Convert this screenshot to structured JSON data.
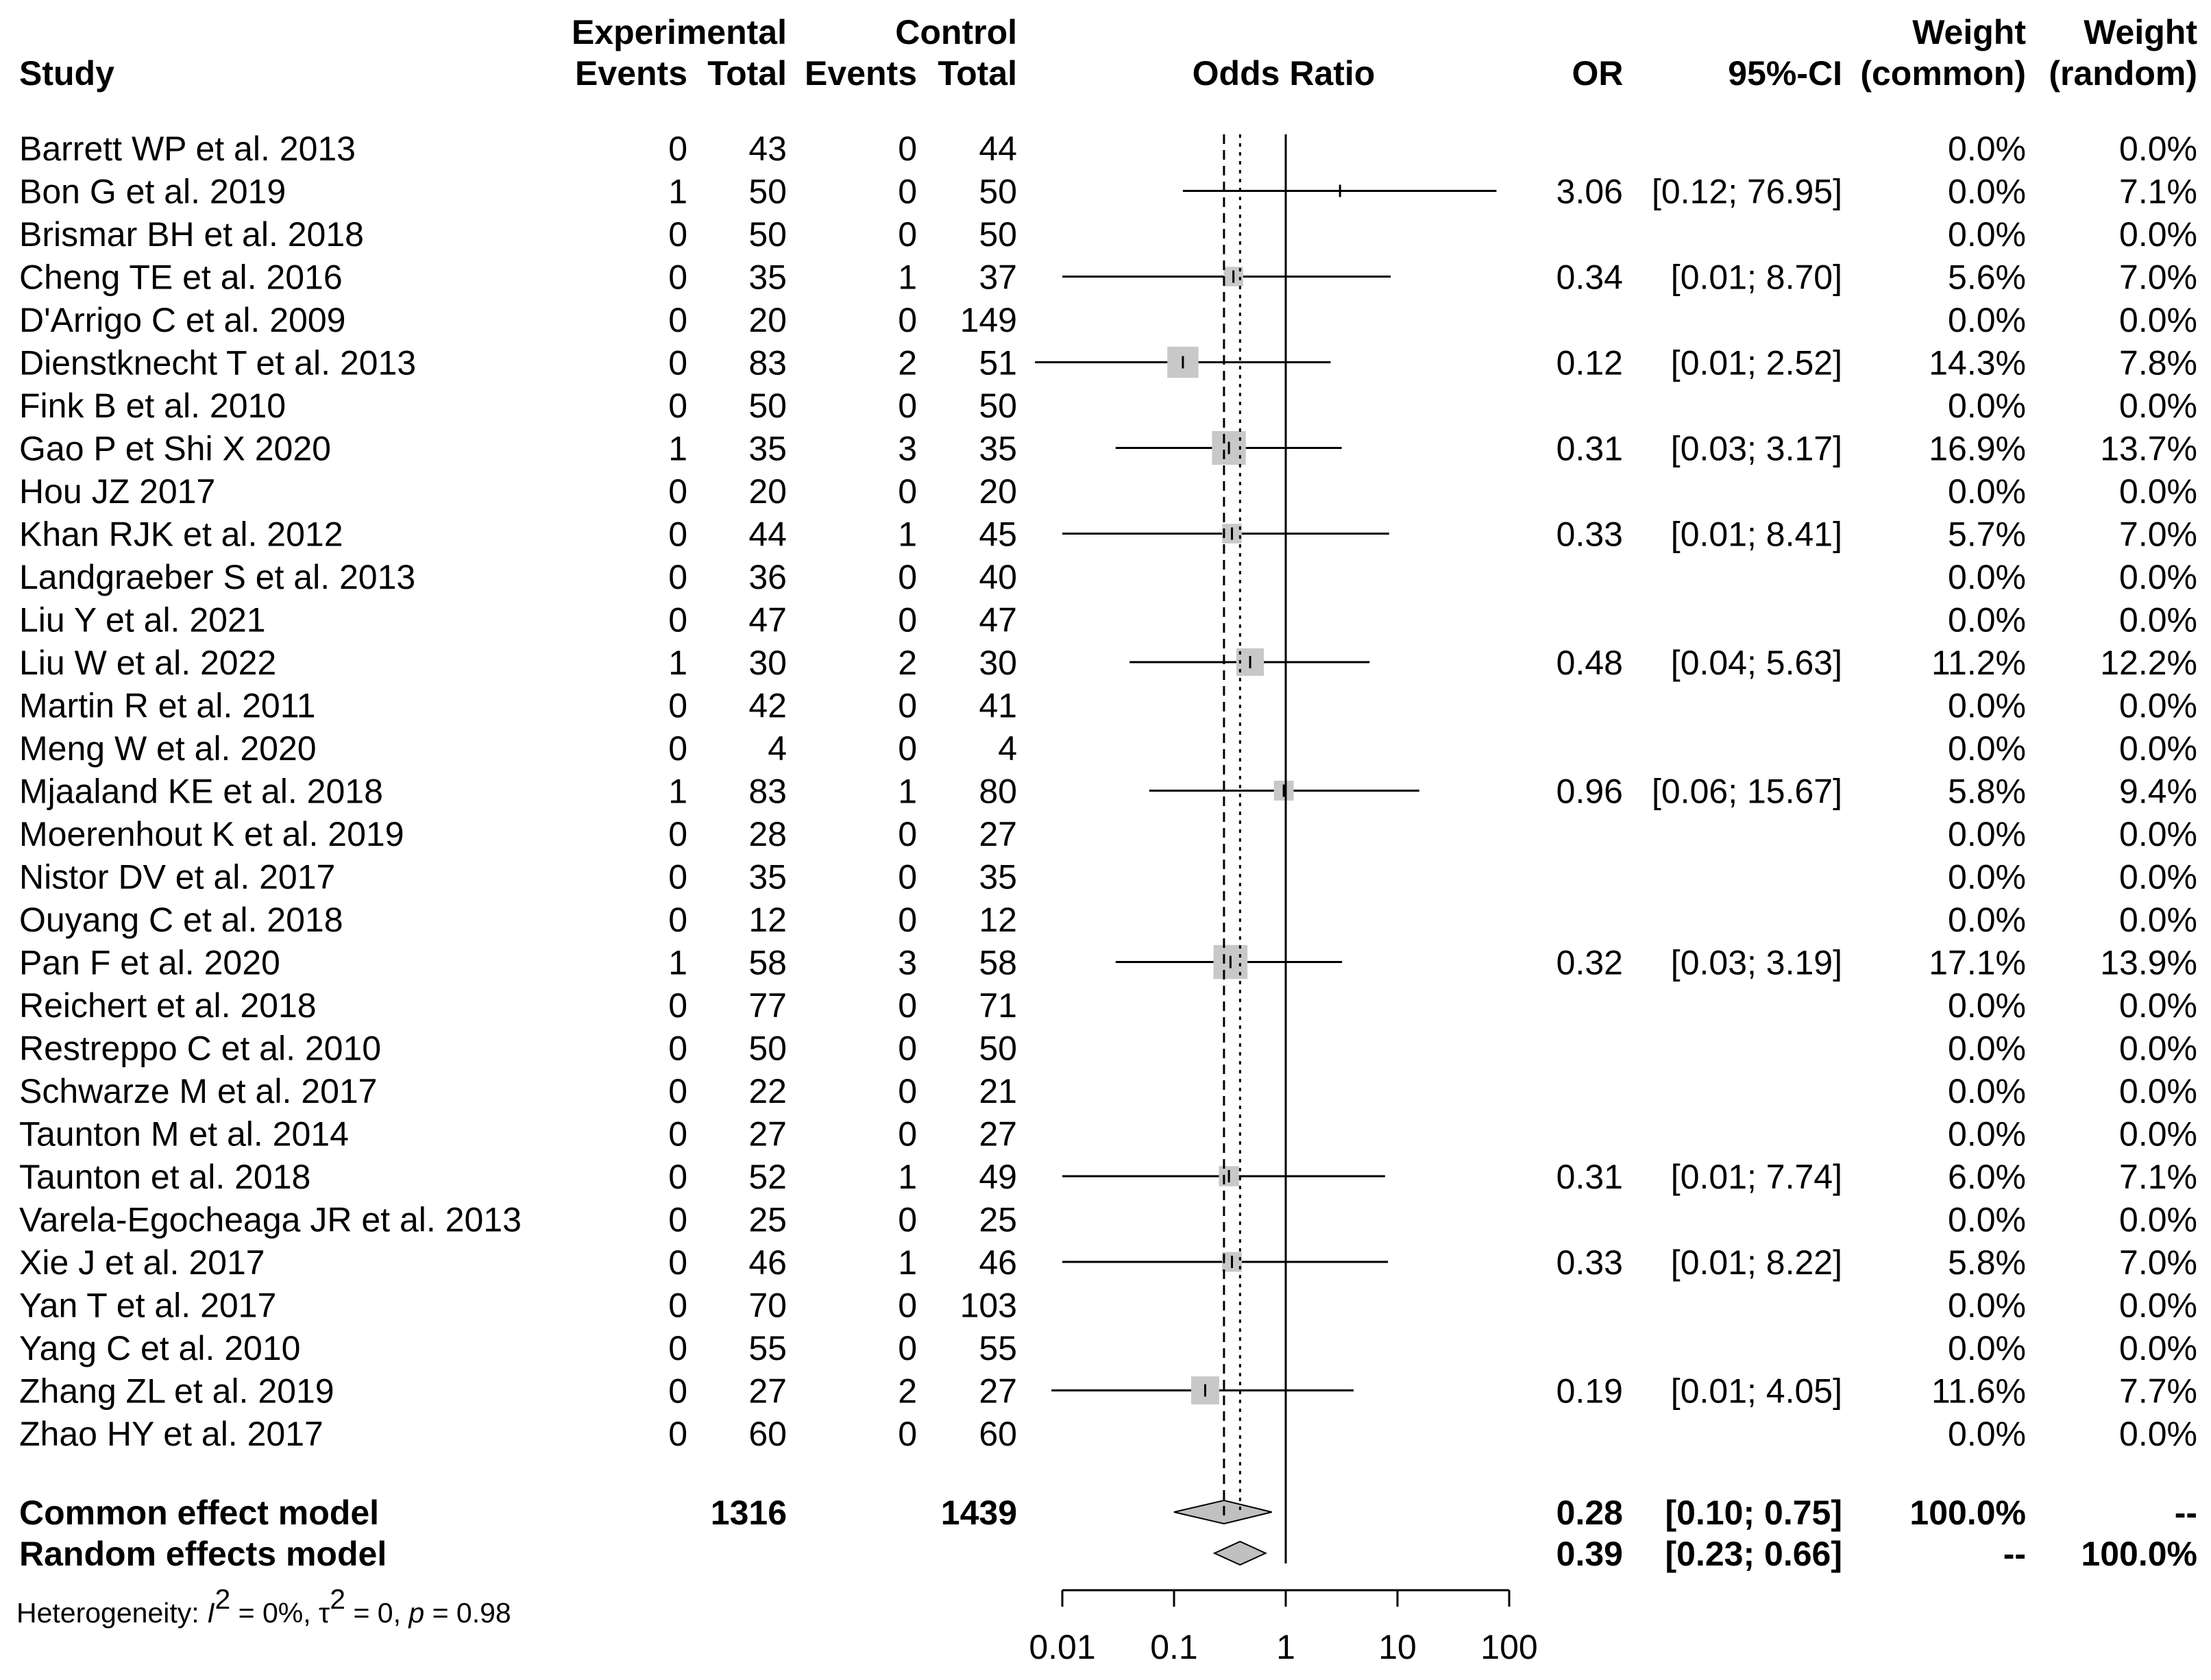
{
  "chart_data": {
    "type": "forest",
    "title": "Odds Ratio",
    "headers": {
      "study": "Study",
      "experimental": "Experimental",
      "control": "Control",
      "events": "Events",
      "total": "Total",
      "odds_ratio": "Odds Ratio",
      "or": "OR",
      "ci": "95%-CI",
      "weight": "Weight",
      "weight_common": "(common)",
      "weight_random": "(random)"
    },
    "x_scale": "log",
    "xlim": [
      0.01,
      100
    ],
    "ticks": [
      {
        "value": 0.01,
        "label": "0.01"
      },
      {
        "value": 0.1,
        "label": "0.1"
      },
      {
        "value": 1,
        "label": "1"
      },
      {
        "value": 10,
        "label": "10"
      },
      {
        "value": 100,
        "label": "100"
      }
    ],
    "reference_line": 1,
    "studies": [
      {
        "study": "Barrett WP et al. 2013",
        "e_events": "0",
        "e_total": "43",
        "c_events": "0",
        "c_total": "44",
        "or_text": "",
        "ci_text": "",
        "w_common": "0.0%",
        "w_random": "0.0%"
      },
      {
        "study": "Bon G et al. 2019",
        "e_events": "1",
        "e_total": "50",
        "c_events": "0",
        "c_total": "50",
        "or_text": "3.06",
        "ci_text": "[0.12; 76.95]",
        "w_common": "0.0%",
        "w_random": "7.1%",
        "or": 3.06,
        "lower": 0.12,
        "upper": 76.95,
        "weight": 0.0
      },
      {
        "study": "Brismar BH et al. 2018",
        "e_events": "0",
        "e_total": "50",
        "c_events": "0",
        "c_total": "50",
        "or_text": "",
        "ci_text": "",
        "w_common": "0.0%",
        "w_random": "0.0%"
      },
      {
        "study": "Cheng TE et al. 2016",
        "e_events": "0",
        "e_total": "35",
        "c_events": "1",
        "c_total": "37",
        "or_text": "0.34",
        "ci_text": "[0.01;  8.70]",
        "w_common": "5.6%",
        "w_random": "7.0%",
        "or": 0.34,
        "lower": 0.01,
        "upper": 8.7,
        "weight": 5.6
      },
      {
        "study": "D'Arrigo C et al. 2009",
        "e_events": "0",
        "e_total": "20",
        "c_events": "0",
        "c_total": "149",
        "or_text": "",
        "ci_text": "",
        "w_common": "0.0%",
        "w_random": "0.0%"
      },
      {
        "study": "Dienstknecht T et al. 2013",
        "e_events": "0",
        "e_total": "83",
        "c_events": "2",
        "c_total": "51",
        "or_text": "0.12",
        "ci_text": "[0.01;  2.52]",
        "w_common": "14.3%",
        "w_random": "7.8%",
        "or": 0.12,
        "lower": 0.0057,
        "upper": 2.52,
        "weight": 14.3
      },
      {
        "study": "Fink B et al.  2010",
        "e_events": "0",
        "e_total": "50",
        "c_events": "0",
        "c_total": "50",
        "or_text": "",
        "ci_text": "",
        "w_common": "0.0%",
        "w_random": "0.0%"
      },
      {
        "study": "Gao P et Shi X 2020",
        "e_events": "1",
        "e_total": "35",
        "c_events": "3",
        "c_total": "35",
        "or_text": "0.31",
        "ci_text": "[0.03;  3.17]",
        "w_common": "16.9%",
        "w_random": "13.7%",
        "or": 0.31,
        "lower": 0.03,
        "upper": 3.17,
        "weight": 16.9
      },
      {
        "study": "Hou JZ 2017",
        "e_events": "0",
        "e_total": "20",
        "c_events": "0",
        "c_total": "20",
        "or_text": "",
        "ci_text": "",
        "w_common": "0.0%",
        "w_random": "0.0%"
      },
      {
        "study": "Khan RJK et al. 2012",
        "e_events": "0",
        "e_total": "44",
        "c_events": "1",
        "c_total": "45",
        "or_text": "0.33",
        "ci_text": "[0.01;  8.41]",
        "w_common": "5.7%",
        "w_random": "7.0%",
        "or": 0.33,
        "lower": 0.01,
        "upper": 8.41,
        "weight": 5.7
      },
      {
        "study": "Landgraeber S et al.  2013",
        "e_events": "0",
        "e_total": "36",
        "c_events": "0",
        "c_total": "40",
        "or_text": "",
        "ci_text": "",
        "w_common": "0.0%",
        "w_random": "0.0%"
      },
      {
        "study": "Liu Y et al. 2021",
        "e_events": "0",
        "e_total": "47",
        "c_events": "0",
        "c_total": "47",
        "or_text": "",
        "ci_text": "",
        "w_common": "0.0%",
        "w_random": "0.0%"
      },
      {
        "study": "Liu W et al. 2022",
        "e_events": "1",
        "e_total": "30",
        "c_events": "2",
        "c_total": "30",
        "or_text": "0.48",
        "ci_text": "[0.04;  5.63]",
        "w_common": "11.2%",
        "w_random": "12.2%",
        "or": 0.48,
        "lower": 0.04,
        "upper": 5.63,
        "weight": 11.2
      },
      {
        "study": "Martin R et al. 2011",
        "e_events": "0",
        "e_total": "42",
        "c_events": "0",
        "c_total": "41",
        "or_text": "",
        "ci_text": "",
        "w_common": "0.0%",
        "w_random": "0.0%"
      },
      {
        "study": "Meng W et al. 2020",
        "e_events": "0",
        "e_total": "4",
        "c_events": "0",
        "c_total": "4",
        "or_text": "",
        "ci_text": "",
        "w_common": "0.0%",
        "w_random": "0.0%"
      },
      {
        "study": "Mjaaland KE et al. 2018",
        "e_events": "1",
        "e_total": "83",
        "c_events": "1",
        "c_total": "80",
        "or_text": "0.96",
        "ci_text": "[0.06; 15.67]",
        "w_common": "5.8%",
        "w_random": "9.4%",
        "or": 0.96,
        "lower": 0.06,
        "upper": 15.67,
        "weight": 5.8
      },
      {
        "study": "Moerenhout K et al.  2019",
        "e_events": "0",
        "e_total": "28",
        "c_events": "0",
        "c_total": "27",
        "or_text": "",
        "ci_text": "",
        "w_common": "0.0%",
        "w_random": "0.0%"
      },
      {
        "study": "Nistor DV et al. 2017",
        "e_events": "0",
        "e_total": "35",
        "c_events": "0",
        "c_total": "35",
        "or_text": "",
        "ci_text": "",
        "w_common": "0.0%",
        "w_random": "0.0%"
      },
      {
        "study": "Ouyang C et al. 2018",
        "e_events": "0",
        "e_total": "12",
        "c_events": "0",
        "c_total": "12",
        "or_text": "",
        "ci_text": "",
        "w_common": "0.0%",
        "w_random": "0.0%"
      },
      {
        "study": "Pan F et al. 2020",
        "e_events": "1",
        "e_total": "58",
        "c_events": "3",
        "c_total": "58",
        "or_text": "0.32",
        "ci_text": "[0.03;  3.19]",
        "w_common": "17.1%",
        "w_random": "13.9%",
        "or": 0.32,
        "lower": 0.03,
        "upper": 3.19,
        "weight": 17.1
      },
      {
        "study": "Reichert et al. 2018",
        "e_events": "0",
        "e_total": "77",
        "c_events": "0",
        "c_total": "71",
        "or_text": "",
        "ci_text": "",
        "w_common": "0.0%",
        "w_random": "0.0%"
      },
      {
        "study": "Restreppo C et al. 2010",
        "e_events": "0",
        "e_total": "50",
        "c_events": "0",
        "c_total": "50",
        "or_text": "",
        "ci_text": "",
        "w_common": "0.0%",
        "w_random": "0.0%"
      },
      {
        "study": "Schwarze M et al. 2017",
        "e_events": "0",
        "e_total": "22",
        "c_events": "0",
        "c_total": "21",
        "or_text": "",
        "ci_text": "",
        "w_common": "0.0%",
        "w_random": "0.0%"
      },
      {
        "study": "Taunton M et al. 2014",
        "e_events": "0",
        "e_total": "27",
        "c_events": "0",
        "c_total": "27",
        "or_text": "",
        "ci_text": "",
        "w_common": "0.0%",
        "w_random": "0.0%"
      },
      {
        "study": "Taunton et al. 2018",
        "e_events": "0",
        "e_total": "52",
        "c_events": "1",
        "c_total": "49",
        "or_text": "0.31",
        "ci_text": "[0.01;  7.74]",
        "w_common": "6.0%",
        "w_random": "7.1%",
        "or": 0.31,
        "lower": 0.01,
        "upper": 7.74,
        "weight": 6.0
      },
      {
        "study": "Varela-Egocheaga JR et al.  2013",
        "e_events": "0",
        "e_total": "25",
        "c_events": "0",
        "c_total": "25",
        "or_text": "",
        "ci_text": "",
        "w_common": "0.0%",
        "w_random": "0.0%"
      },
      {
        "study": "Xie J et al.  2017",
        "e_events": "0",
        "e_total": "46",
        "c_events": "1",
        "c_total": "46",
        "or_text": "0.33",
        "ci_text": "[0.01;  8.22]",
        "w_common": "5.8%",
        "w_random": "7.0%",
        "or": 0.33,
        "lower": 0.01,
        "upper": 8.22,
        "weight": 5.8
      },
      {
        "study": "Yan T et al. 2017",
        "e_events": "0",
        "e_total": "70",
        "c_events": "0",
        "c_total": "103",
        "or_text": "",
        "ci_text": "",
        "w_common": "0.0%",
        "w_random": "0.0%"
      },
      {
        "study": "Yang C et al. 2010",
        "e_events": "0",
        "e_total": "55",
        "c_events": "0",
        "c_total": "55",
        "or_text": "",
        "ci_text": "",
        "w_common": "0.0%",
        "w_random": "0.0%"
      },
      {
        "study": "Zhang ZL et al. 2019",
        "e_events": "0",
        "e_total": "27",
        "c_events": "2",
        "c_total": "27",
        "or_text": "0.19",
        "ci_text": "[0.01;  4.05]",
        "w_common": "11.6%",
        "w_random": "7.7%",
        "or": 0.19,
        "lower": 0.008,
        "upper": 4.05,
        "weight": 11.6
      },
      {
        "study": "Zhao HY et al. 2017",
        "e_events": "0",
        "e_total": "60",
        "c_events": "0",
        "c_total": "60",
        "or_text": "",
        "ci_text": "",
        "w_common": "0.0%",
        "w_random": "0.0%"
      }
    ],
    "summary": [
      {
        "label": "Common effect model",
        "e_total": "1316",
        "c_total": "1439",
        "or_text": "0.28",
        "ci_text": "[0.10; 0.75]",
        "w_common": "100.0%",
        "w_random": "--",
        "or": 0.28,
        "lower": 0.1,
        "upper": 0.75
      },
      {
        "label": "Random effects model",
        "e_total": "",
        "c_total": "",
        "or_text": "0.39",
        "ci_text": "[0.23; 0.66]",
        "w_common": "--",
        "w_random": "100.0%",
        "or": 0.39,
        "lower": 0.23,
        "upper": 0.66
      }
    ],
    "heterogeneity": {
      "prefix": "Heterogeneity: ",
      "i2_symbol": "I",
      "i2_sup": "2",
      "i2_value": " = 0%, ",
      "tau_symbol": "τ",
      "tau_sup": "2",
      "tau_value": " = 0, ",
      "p_symbol": "p",
      "p_value": " = 0.98"
    }
  }
}
